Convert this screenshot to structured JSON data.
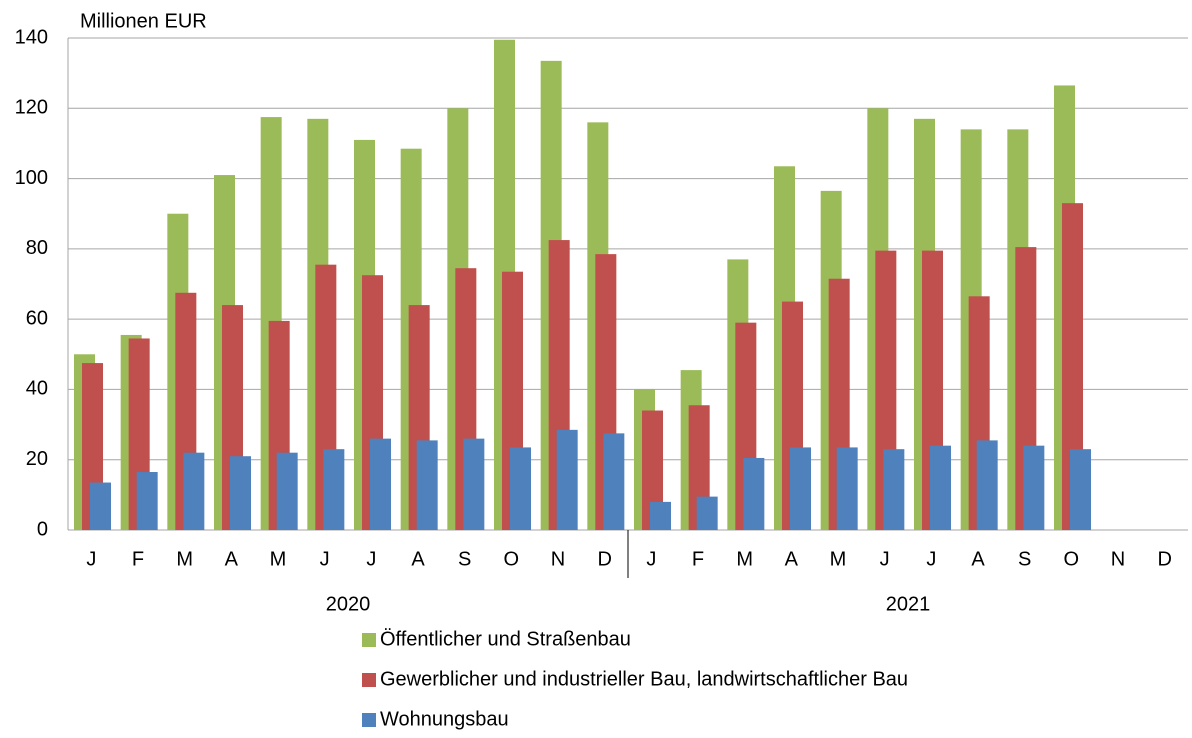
{
  "chart_data": {
    "type": "bar",
    "y_label": "Millionen EUR",
    "categories": [
      "J",
      "F",
      "M",
      "A",
      "M",
      "J",
      "J",
      "A",
      "S",
      "O",
      "N",
      "D",
      "J",
      "F",
      "M",
      "A",
      "M",
      "J",
      "J",
      "A",
      "S",
      "O",
      "N",
      "D"
    ],
    "groups": [
      {
        "label": "2020",
        "size": 12
      },
      {
        "label": "2021",
        "size": 12
      }
    ],
    "series": [
      {
        "name": "Öffentlicher und Straßenbau",
        "color": "#9bbb59",
        "values": [
          50,
          55.5,
          90,
          101,
          117.5,
          117,
          111,
          108.5,
          120,
          139.5,
          133.5,
          116,
          40,
          45.5,
          77,
          103.5,
          96.5,
          120,
          117,
          114,
          114,
          126.5,
          null,
          null
        ]
      },
      {
        "name": "Gewerblicher und industrieller Bau, landwirtschaftlicher Bau",
        "color": "#c0504d",
        "values": [
          47.5,
          54.5,
          67.5,
          64,
          59.5,
          75.5,
          72.5,
          64,
          74.5,
          73.5,
          82.5,
          78.5,
          34,
          35.5,
          59,
          65,
          71.5,
          79.5,
          79.5,
          66.5,
          80.5,
          93,
          null,
          null
        ]
      },
      {
        "name": "Wohnungsbau",
        "color": "#4f81bd",
        "values": [
          13.5,
          16.5,
          22,
          21,
          22,
          23,
          26,
          25.5,
          26,
          23.5,
          28.5,
          27.5,
          8,
          9.5,
          20.5,
          23.5,
          23.5,
          23,
          24,
          25.5,
          24,
          23,
          null,
          null
        ]
      }
    ],
    "ylim": [
      0,
      140
    ],
    "yticks": [
      0,
      20,
      40,
      60,
      80,
      100,
      120,
      140
    ],
    "grid": true
  }
}
